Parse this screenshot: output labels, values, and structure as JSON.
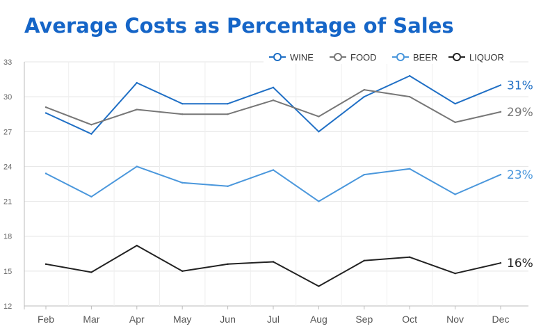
{
  "chart_data": {
    "type": "line",
    "title": "Average Costs as Percentage of Sales",
    "xlabel": "",
    "ylabel": "",
    "categories": [
      "Feb",
      "Mar",
      "Apr",
      "May",
      "Jun",
      "Jul",
      "Aug",
      "Sep",
      "Oct",
      "Nov",
      "Dec"
    ],
    "ylim": [
      12,
      33
    ],
    "yticks": [
      12,
      15,
      18,
      21,
      24,
      27,
      30,
      33
    ],
    "legend_position": "top-right",
    "grid": true,
    "series": [
      {
        "name": "WINE",
        "color": "#1f6fc5",
        "end_label": "31%",
        "values": [
          28.6,
          26.8,
          31.2,
          29.4,
          29.4,
          30.8,
          27.0,
          30.0,
          31.8,
          29.4,
          31.0
        ]
      },
      {
        "name": "FOOD",
        "color": "#777777",
        "end_label": "29%",
        "values": [
          29.1,
          27.6,
          28.9,
          28.5,
          28.5,
          29.7,
          28.3,
          30.6,
          30.0,
          27.8,
          28.7
        ]
      },
      {
        "name": "BEER",
        "color": "#4a97dc",
        "end_label": "23%",
        "values": [
          23.4,
          21.4,
          24.0,
          22.6,
          22.3,
          23.7,
          21.0,
          23.3,
          23.8,
          21.6,
          23.3
        ]
      },
      {
        "name": "LIQUOR",
        "color": "#222222",
        "end_label": "16%",
        "values": [
          15.6,
          14.9,
          17.2,
          15.0,
          15.6,
          15.8,
          13.7,
          15.9,
          16.2,
          14.8,
          15.7
        ]
      }
    ]
  }
}
